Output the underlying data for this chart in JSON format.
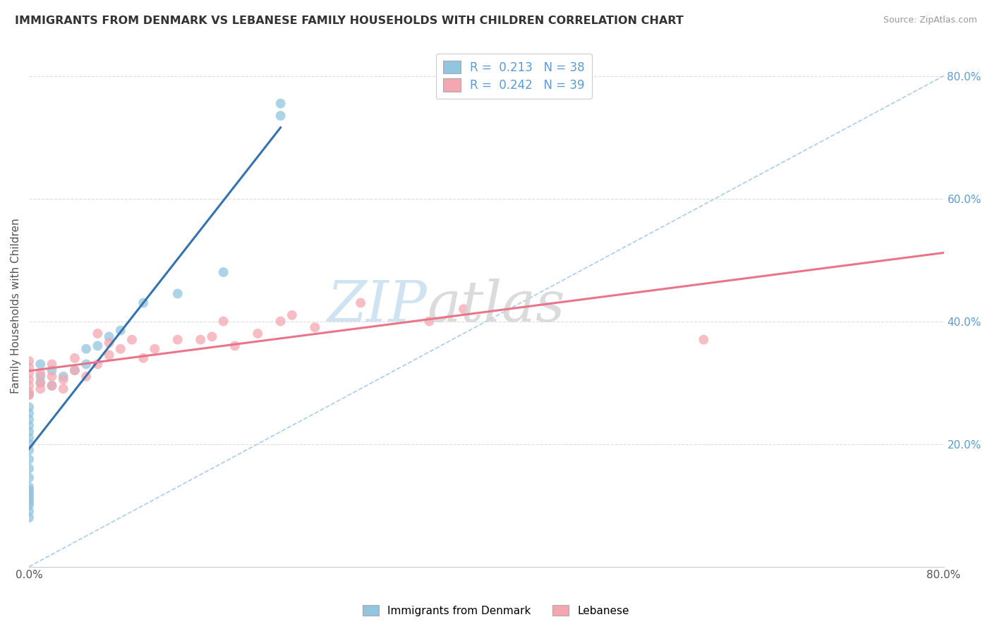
{
  "title": "IMMIGRANTS FROM DENMARK VS LEBANESE FAMILY HOUSEHOLDS WITH CHILDREN CORRELATION CHART",
  "source": "Source: ZipAtlas.com",
  "ylabel": "Family Households with Children",
  "blue_color": "#92c5de",
  "pink_color": "#f4a7b0",
  "blue_line_color": "#3572b0",
  "pink_line_color": "#e8758a",
  "dashed_line_color": "#aaccee",
  "xlim": [
    0.0,
    0.8
  ],
  "ylim": [
    0.0,
    0.85
  ],
  "denmark_x": [
    0.0,
    0.0,
    0.0,
    0.0,
    0.0,
    0.0,
    0.0,
    0.0,
    0.0,
    0.0,
    0.0,
    0.0,
    0.01,
    0.01,
    0.01,
    0.02,
    0.02,
    0.03,
    0.04,
    0.05,
    0.05,
    0.06,
    0.07,
    0.08,
    0.1,
    0.13,
    0.17,
    0.22,
    0.22,
    0.0,
    0.0,
    0.0,
    0.0,
    0.0,
    0.0,
    0.0,
    0.0,
    0.0
  ],
  "denmark_y": [
    0.145,
    0.16,
    0.175,
    0.19,
    0.2,
    0.21,
    0.22,
    0.23,
    0.24,
    0.25,
    0.26,
    0.28,
    0.3,
    0.31,
    0.33,
    0.295,
    0.32,
    0.31,
    0.32,
    0.33,
    0.355,
    0.36,
    0.375,
    0.385,
    0.43,
    0.445,
    0.48,
    0.735,
    0.755,
    0.08,
    0.09,
    0.1,
    0.105,
    0.11,
    0.115,
    0.12,
    0.125,
    0.13
  ],
  "lebanese_x": [
    0.0,
    0.0,
    0.0,
    0.0,
    0.0,
    0.0,
    0.01,
    0.01,
    0.01,
    0.02,
    0.02,
    0.02,
    0.03,
    0.03,
    0.04,
    0.04,
    0.05,
    0.06,
    0.06,
    0.07,
    0.07,
    0.08,
    0.09,
    0.1,
    0.11,
    0.13,
    0.15,
    0.16,
    0.17,
    0.18,
    0.2,
    0.22,
    0.23,
    0.25,
    0.29,
    0.35,
    0.38,
    0.59,
    0.0
  ],
  "lebanese_y": [
    0.285,
    0.295,
    0.305,
    0.315,
    0.325,
    0.335,
    0.29,
    0.3,
    0.315,
    0.295,
    0.31,
    0.33,
    0.29,
    0.305,
    0.32,
    0.34,
    0.31,
    0.33,
    0.38,
    0.345,
    0.365,
    0.355,
    0.37,
    0.34,
    0.355,
    0.37,
    0.37,
    0.375,
    0.4,
    0.36,
    0.38,
    0.4,
    0.41,
    0.39,
    0.43,
    0.4,
    0.42,
    0.37,
    0.28
  ]
}
